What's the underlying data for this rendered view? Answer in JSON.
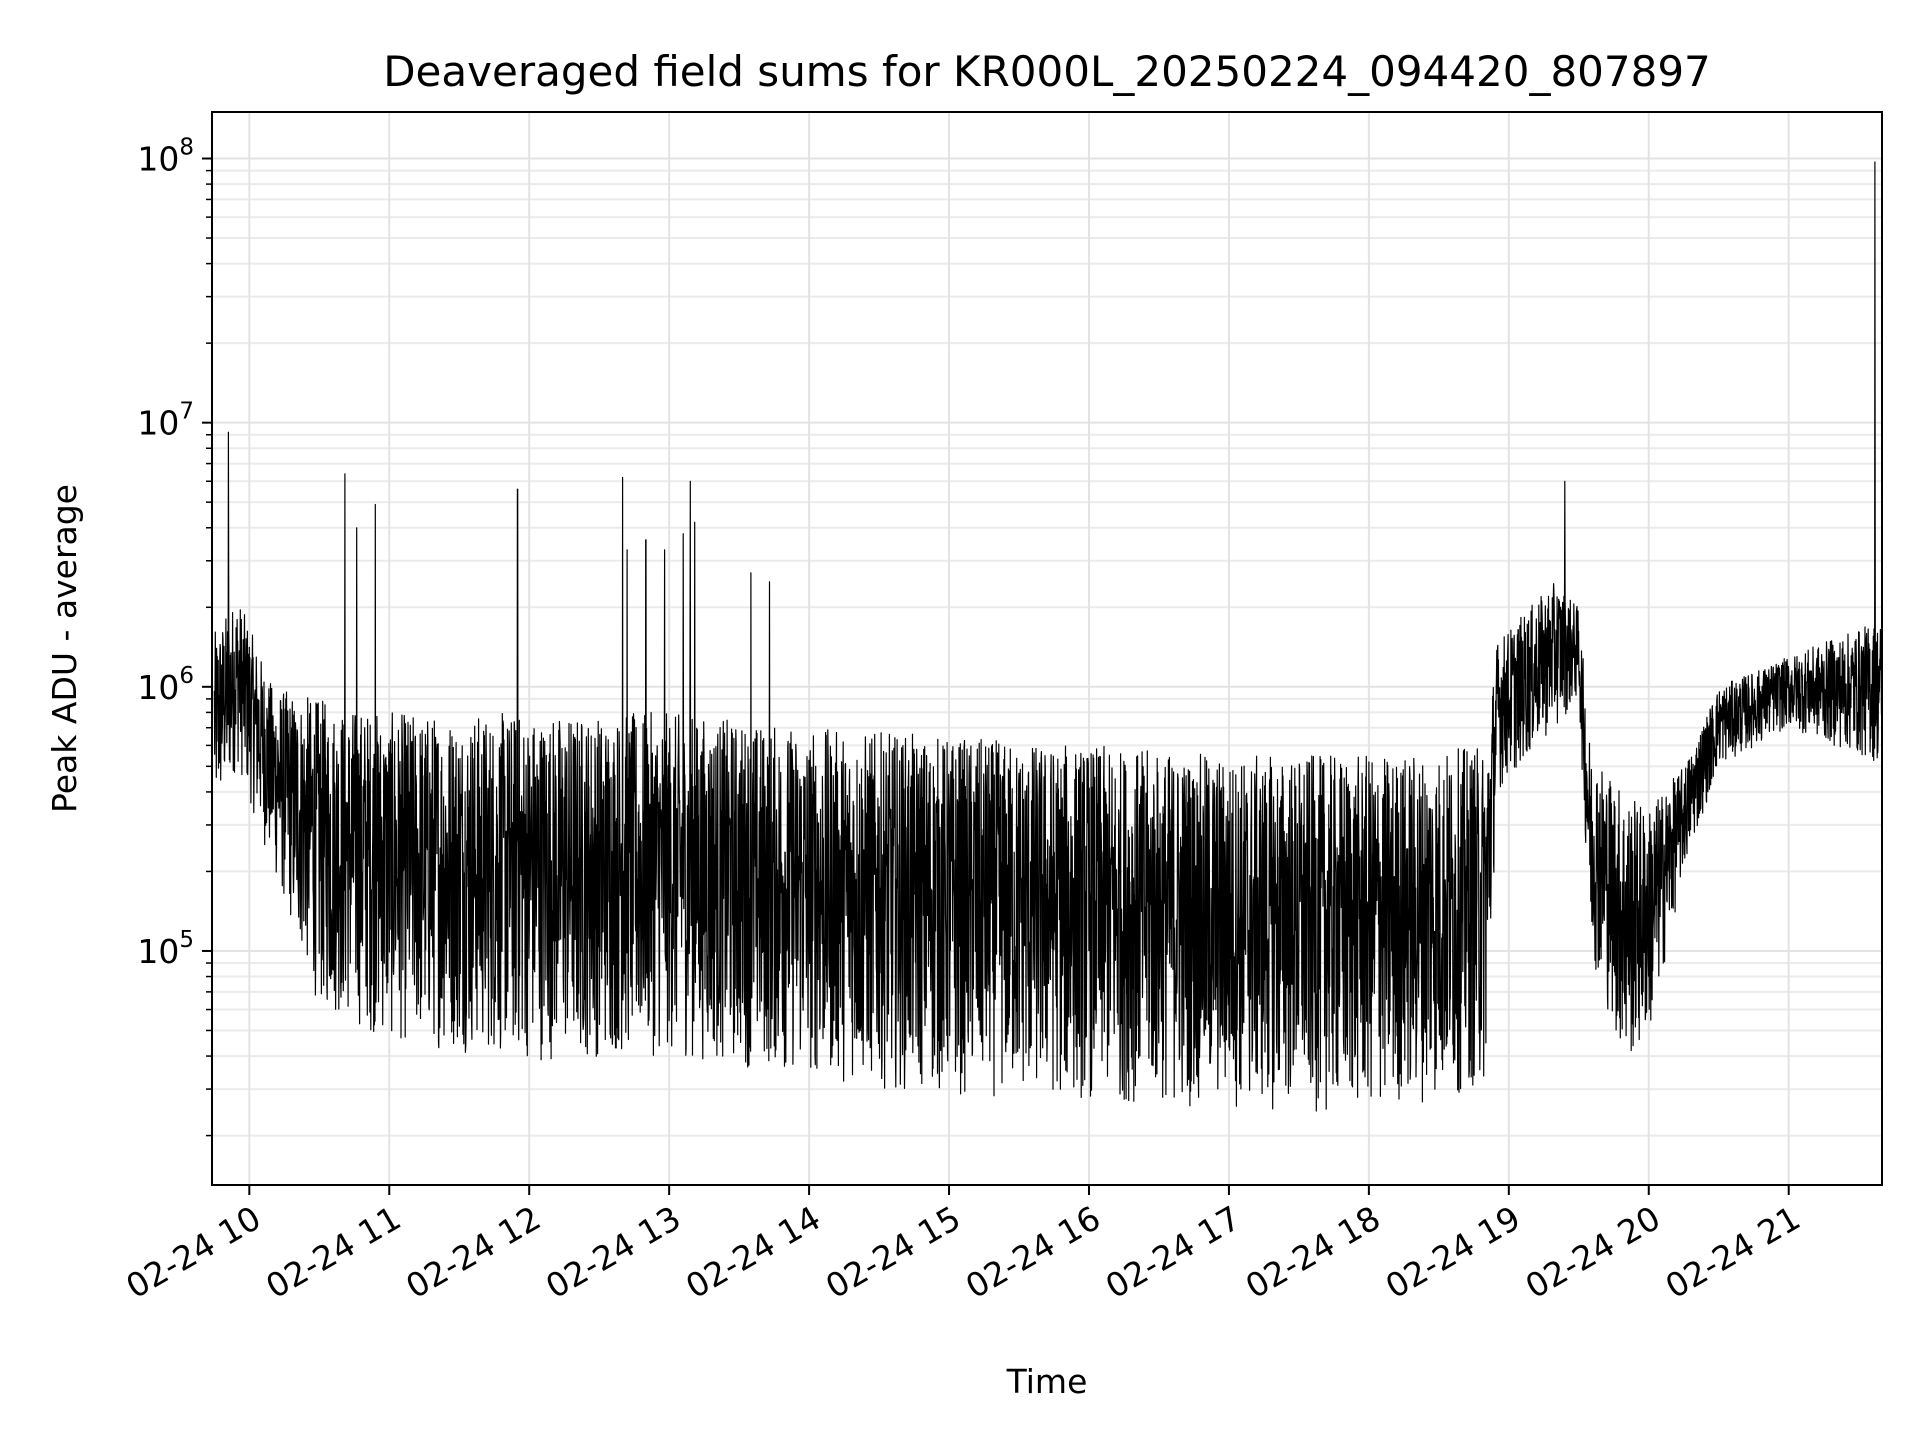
{
  "chart_data": {
    "type": "line",
    "title": "Deaveraged field sums for KR000L_20250224_094420_807897",
    "xlabel": "Time",
    "ylabel": "Peak ADU - average",
    "yscale": "log",
    "xlim": [
      "2025-02-24 09:44",
      "2025-02-24 21:40"
    ],
    "ylim": [
      13000,
      150000000
    ],
    "grid": true,
    "x_ticks": [
      {
        "label": "02-24 10",
        "value": "2025-02-24 10:00"
      },
      {
        "label": "02-24 11",
        "value": "2025-02-24 11:00"
      },
      {
        "label": "02-24 12",
        "value": "2025-02-24 12:00"
      },
      {
        "label": "02-24 13",
        "value": "2025-02-24 13:00"
      },
      {
        "label": "02-24 14",
        "value": "2025-02-24 14:00"
      },
      {
        "label": "02-24 15",
        "value": "2025-02-24 15:00"
      },
      {
        "label": "02-24 16",
        "value": "2025-02-24 16:00"
      },
      {
        "label": "02-24 17",
        "value": "2025-02-24 17:00"
      },
      {
        "label": "02-24 18",
        "value": "2025-02-24 18:00"
      },
      {
        "label": "02-24 19",
        "value": "2025-02-24 19:00"
      },
      {
        "label": "02-24 20",
        "value": "2025-02-24 20:00"
      },
      {
        "label": "02-24 21",
        "value": "2025-02-24 21:00"
      }
    ],
    "y_ticks": [
      {
        "base": "10",
        "exp": "5",
        "value": 100000
      },
      {
        "base": "10",
        "exp": "6",
        "value": 1000000
      },
      {
        "base": "10",
        "exp": "7",
        "value": 10000000
      },
      {
        "base": "10",
        "exp": "8",
        "value": 100000000
      }
    ],
    "series": [
      {
        "color": "#000000",
        "envelope": [
          {
            "time": "2025-02-24 09:45",
            "high": 1600000,
            "low": 300000
          },
          {
            "time": "2025-02-24 09:55",
            "high": 2200000,
            "low": 500000
          },
          {
            "time": "2025-02-24 10:10",
            "high": 1000000,
            "low": 200000
          },
          {
            "time": "2025-02-24 10:30",
            "high": 900000,
            "low": 60000
          },
          {
            "time": "2025-02-24 11:00",
            "high": 800000,
            "low": 45000
          },
          {
            "time": "2025-02-24 12:00",
            "high": 800000,
            "low": 38000
          },
          {
            "time": "2025-02-24 13:00",
            "high": 800000,
            "low": 40000
          },
          {
            "time": "2025-02-24 14:00",
            "high": 700000,
            "low": 33000
          },
          {
            "time": "2025-02-24 15:00",
            "high": 650000,
            "low": 28000
          },
          {
            "time": "2025-02-24 16:00",
            "high": 600000,
            "low": 27000
          },
          {
            "time": "2025-02-24 17:00",
            "high": 550000,
            "low": 25000
          },
          {
            "time": "2025-02-24 18:00",
            "high": 550000,
            "low": 24000
          },
          {
            "time": "2025-02-24 18:50",
            "high": 600000,
            "low": 30000
          },
          {
            "time": "2025-02-24 18:55",
            "high": 1500000,
            "low": 400000
          },
          {
            "time": "2025-02-24 19:20",
            "high": 2500000,
            "low": 700000
          },
          {
            "time": "2025-02-24 19:30",
            "high": 2000000,
            "low": 900000
          },
          {
            "time": "2025-02-24 19:35",
            "high": 600000,
            "low": 100000
          },
          {
            "time": "2025-02-24 19:50",
            "high": 400000,
            "low": 35000
          },
          {
            "time": "2025-02-24 20:00",
            "high": 350000,
            "low": 45000
          },
          {
            "time": "2025-02-24 20:15",
            "high": 500000,
            "low": 200000
          },
          {
            "time": "2025-02-24 20:30",
            "high": 1000000,
            "low": 500000
          },
          {
            "time": "2025-02-24 21:00",
            "high": 1300000,
            "low": 700000
          },
          {
            "time": "2025-02-24 21:40",
            "high": 1800000,
            "low": 500000
          }
        ],
        "spikes": [
          {
            "time": "2025-02-24 09:51",
            "value": 9200000
          },
          {
            "time": "2025-02-24 10:41",
            "value": 6400000
          },
          {
            "time": "2025-02-24 10:46",
            "value": 4000000
          },
          {
            "time": "2025-02-24 10:54",
            "value": 4900000
          },
          {
            "time": "2025-02-24 11:55",
            "value": 5600000
          },
          {
            "time": "2025-02-24 12:40",
            "value": 6200000
          },
          {
            "time": "2025-02-24 12:42",
            "value": 3300000
          },
          {
            "time": "2025-02-24 12:50",
            "value": 3600000
          },
          {
            "time": "2025-02-24 12:58",
            "value": 3300000
          },
          {
            "time": "2025-02-24 13:06",
            "value": 3800000
          },
          {
            "time": "2025-02-24 13:09",
            "value": 6000000
          },
          {
            "time": "2025-02-24 13:11",
            "value": 4200000
          },
          {
            "time": "2025-02-24 13:35",
            "value": 2700000
          },
          {
            "time": "2025-02-24 13:43",
            "value": 2500000
          },
          {
            "time": "2025-02-24 19:24",
            "value": 6000000
          },
          {
            "time": "2025-02-24 21:37",
            "value": 97000000
          }
        ]
      }
    ]
  }
}
